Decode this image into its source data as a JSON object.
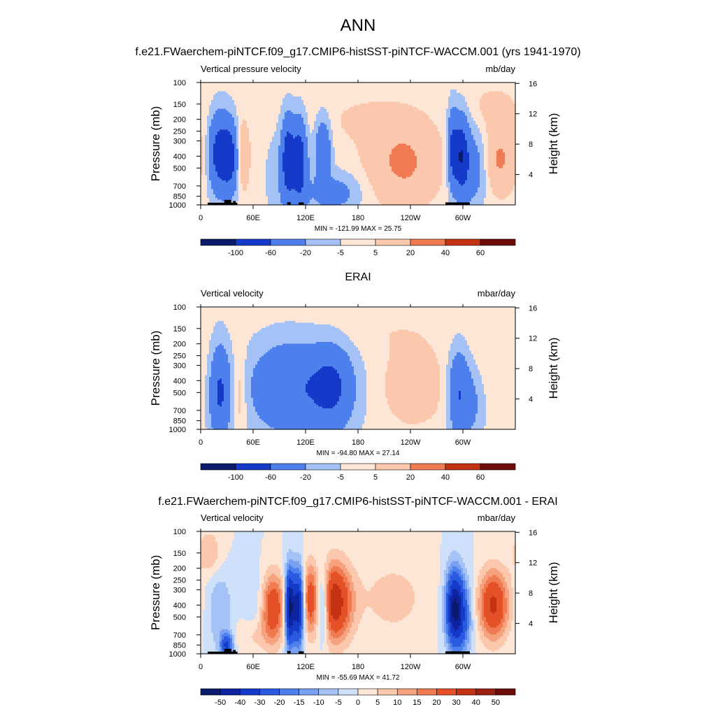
{
  "figure": {
    "title": "ANN",
    "model_case_title": "f.e21.FWaerchem-piNTCF.f09_g17.CMIP6-histSST-piNTCF-WACCM.001 (yrs 1941-1970)",
    "obs_case_title": "ERAI",
    "diff_case_title": "f.e21.FWaerchem-piNTCF.f09_g17.CMIP6-histSST-piNTCF-WACCM.001 - ERAI"
  },
  "colors": {
    "palette": [
      "#0b1a6b",
      "#0d23a0",
      "#1539c8",
      "#2a5ae0",
      "#4d80ec",
      "#79a1f2",
      "#a5c2f6",
      "#cfe0fb",
      "#fde6d6",
      "#fbc8ad",
      "#f6a27f",
      "#f07b52",
      "#e55127",
      "#c43214",
      "#9c1f10",
      "#6e0c0a"
    ],
    "land_mask": "#000000"
  },
  "chart_data": [
    {
      "type": "heatmap",
      "panel": "model",
      "left_label": "Vertical pressure velocity",
      "right_label": "mb/day",
      "ylabel": "Pressure (mb)",
      "y2label": "Height (km)",
      "x_ticks": [
        "0",
        "60E",
        "120E",
        "180",
        "120W",
        "60W"
      ],
      "y_ticks": [
        "100",
        "150",
        "200",
        "250",
        "300",
        "400",
        "500",
        "700",
        "850",
        "1000"
      ],
      "y2_ticks": [
        "16",
        "12",
        "8",
        "4"
      ],
      "stats": "MIN = -121.99  MAX =  25.75",
      "colorbar_labels": [
        "-100",
        "-60",
        "-20",
        "-5",
        "5",
        "20",
        "40",
        "60"
      ],
      "blobs": [
        {
          "lon": 22,
          "p": 380,
          "w": 9,
          "h": 0.5,
          "amp": -85
        },
        {
          "lon": 35,
          "p": 420,
          "w": 6,
          "h": 0.45,
          "amp": -60
        },
        {
          "lon": 47,
          "p": 400,
          "w": 6,
          "h": 0.45,
          "amp": 22
        },
        {
          "lon": 100,
          "p": 400,
          "w": 5,
          "h": 0.5,
          "amp": -75
        },
        {
          "lon": 113,
          "p": 420,
          "w": 5,
          "h": 0.5,
          "amp": -70
        },
        {
          "lon": 108,
          "p": 600,
          "w": 18,
          "h": 0.6,
          "amp": -30
        },
        {
          "lon": 140,
          "p": 350,
          "w": 6,
          "h": 0.4,
          "amp": -50
        },
        {
          "lon": 155,
          "p": 800,
          "w": 18,
          "h": 0.25,
          "amp": -30
        },
        {
          "lon": 128,
          "p": 450,
          "w": 5,
          "h": 0.5,
          "amp": 8
        },
        {
          "lon": 232,
          "p": 450,
          "w": 28,
          "h": 0.55,
          "amp": 23
        },
        {
          "lon": 298,
          "p": 400,
          "w": 6,
          "h": 0.5,
          "amp": -90
        },
        {
          "lon": 288,
          "p": 350,
          "w": 4,
          "h": 0.5,
          "amp": -60
        },
        {
          "lon": 312,
          "p": 500,
          "w": 10,
          "h": 0.5,
          "amp": -35
        },
        {
          "lon": 342,
          "p": 420,
          "w": 14,
          "h": 0.45,
          "amp": 22
        },
        {
          "lon": 335,
          "p": 160,
          "w": 22,
          "h": 0.3,
          "amp": 8
        },
        {
          "lon": 185,
          "p": 200,
          "w": 40,
          "h": 0.35,
          "amp": 6
        },
        {
          "lon": 5,
          "p": 350,
          "w": 4,
          "h": 0.5,
          "amp": 6
        }
      ],
      "topography": [
        {
          "lon0": 8,
          "lon1": 42,
          "p_top": 960
        },
        {
          "lon0": 27,
          "lon1": 35,
          "p_top": 910
        },
        {
          "lon0": 37,
          "lon1": 40,
          "p_top": 930
        },
        {
          "lon0": 99,
          "lon1": 103,
          "p_top": 950
        },
        {
          "lon0": 112,
          "lon1": 118,
          "p_top": 955
        },
        {
          "lon0": 280,
          "lon1": 308,
          "p_top": 955
        }
      ]
    },
    {
      "type": "heatmap",
      "panel": "obs",
      "left_label": "Vertical velocity",
      "right_label": "mbar/day",
      "ylabel": "Pressure (mb)",
      "y2label": "Height (km)",
      "x_ticks": [
        "0",
        "60E",
        "120E",
        "180",
        "120W",
        "60W"
      ],
      "y_ticks": [
        "100",
        "150",
        "200",
        "250",
        "300",
        "400",
        "500",
        "700",
        "850",
        "1000"
      ],
      "y2_ticks": [
        "16",
        "12",
        "8",
        "4"
      ],
      "stats": "MIN = -94.80  MAX =  27.14",
      "colorbar_labels": [
        "-100",
        "-60",
        "-20",
        "-5",
        "5",
        "20",
        "40",
        "60"
      ],
      "blobs": [
        {
          "lon": 22,
          "p": 500,
          "w": 8,
          "h": 0.6,
          "amp": -65
        },
        {
          "lon": 45,
          "p": 500,
          "w": 6,
          "h": 0.55,
          "amp": 18
        },
        {
          "lon": 100,
          "p": 450,
          "w": 30,
          "h": 0.55,
          "amp": -45
        },
        {
          "lon": 150,
          "p": 450,
          "w": 16,
          "h": 0.5,
          "amp": -55
        },
        {
          "lon": 125,
          "p": 500,
          "w": 45,
          "h": 0.7,
          "amp": -15
        },
        {
          "lon": 240,
          "p": 450,
          "w": 30,
          "h": 0.55,
          "amp": 12
        },
        {
          "lon": 295,
          "p": 500,
          "w": 8,
          "h": 0.55,
          "amp": -55
        },
        {
          "lon": 310,
          "p": 600,
          "w": 10,
          "h": 0.5,
          "amp": -25
        },
        {
          "lon": 340,
          "p": 300,
          "w": 30,
          "h": 0.5,
          "amp": 5
        },
        {
          "lon": 200,
          "p": 160,
          "w": 60,
          "h": 0.3,
          "amp": 4
        }
      ],
      "topography": []
    },
    {
      "type": "heatmap",
      "panel": "difference",
      "left_label": "Vertical velocity",
      "right_label": "mbar/day",
      "ylabel": "Pressure (mb)",
      "y2label": "Height (km)",
      "x_ticks": [
        "0",
        "60E",
        "120E",
        "180",
        "120W",
        "60W"
      ],
      "y_ticks": [
        "100",
        "150",
        "200",
        "250",
        "300",
        "400",
        "500",
        "700",
        "850",
        "1000"
      ],
      "y2_ticks": [
        "16",
        "12",
        "8",
        "4"
      ],
      "stats": "MIN = -55.69  MAX =  41.72",
      "colorbar_labels": [
        "-50",
        "-40",
        "-30",
        "-20",
        "-15",
        "-10",
        "-5",
        "0",
        "5",
        "10",
        "15",
        "20",
        "30",
        "40",
        "50"
      ],
      "blobs": [
        {
          "lon": 22,
          "p": 450,
          "w": 10,
          "h": 0.55,
          "amp": -10
        },
        {
          "lon": 30,
          "p": 850,
          "w": 5,
          "h": 0.15,
          "amp": -30
        },
        {
          "lon": 65,
          "p": 420,
          "w": 12,
          "h": 0.5,
          "amp": -8
        },
        {
          "lon": 82,
          "p": 420,
          "w": 10,
          "h": 0.45,
          "amp": 30
        },
        {
          "lon": 102,
          "p": 420,
          "w": 4,
          "h": 0.5,
          "amp": -55
        },
        {
          "lon": 112,
          "p": 420,
          "w": 4,
          "h": 0.5,
          "amp": -45
        },
        {
          "lon": 125,
          "p": 350,
          "w": 5,
          "h": 0.45,
          "amp": 20
        },
        {
          "lon": 140,
          "p": 400,
          "w": 5,
          "h": 0.45,
          "amp": -30
        },
        {
          "lon": 152,
          "p": 380,
          "w": 14,
          "h": 0.5,
          "amp": 38
        },
        {
          "lon": 220,
          "p": 350,
          "w": 30,
          "h": 0.55,
          "amp": 7
        },
        {
          "lon": 290,
          "p": 420,
          "w": 7,
          "h": 0.5,
          "amp": -45
        },
        {
          "lon": 300,
          "p": 500,
          "w": 8,
          "h": 0.5,
          "amp": -20
        },
        {
          "lon": 335,
          "p": 400,
          "w": 12,
          "h": 0.45,
          "amp": 32
        },
        {
          "lon": 10,
          "p": 150,
          "w": 10,
          "h": 0.3,
          "amp": 10
        },
        {
          "lon": 60,
          "p": 700,
          "w": 15,
          "h": 0.25,
          "amp": 8
        }
      ],
      "topography": [
        {
          "lon0": 8,
          "lon1": 42,
          "p_top": 960
        },
        {
          "lon0": 27,
          "lon1": 35,
          "p_top": 910
        },
        {
          "lon0": 37,
          "lon1": 40,
          "p_top": 930
        },
        {
          "lon0": 99,
          "lon1": 103,
          "p_top": 950
        },
        {
          "lon0": 112,
          "lon1": 118,
          "p_top": 955
        },
        {
          "lon0": 280,
          "lon1": 308,
          "p_top": 955
        }
      ]
    }
  ]
}
